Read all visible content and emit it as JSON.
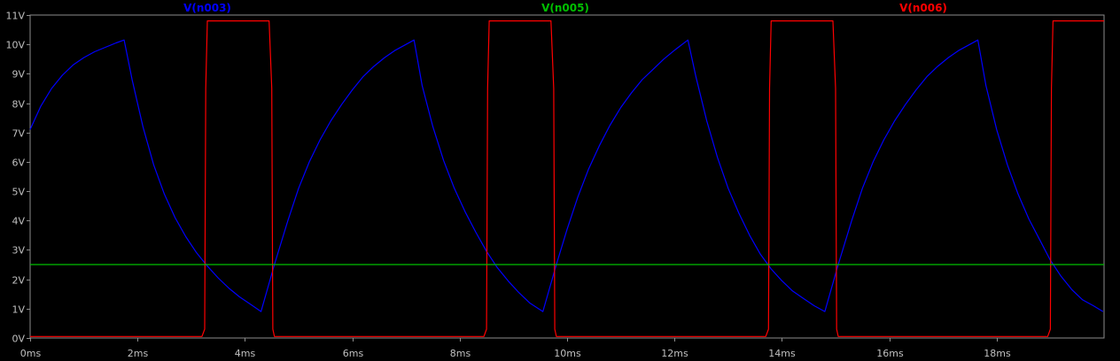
{
  "chart_data": {
    "type": "line",
    "title": "",
    "xlabel": "",
    "ylabel": "",
    "xlim": [
      0,
      20
    ],
    "ylim": [
      0,
      11
    ],
    "x_unit": "ms",
    "y_unit": "V",
    "grid": false,
    "legend_placement": "top",
    "x_ticks": [
      0,
      2,
      4,
      6,
      8,
      10,
      12,
      14,
      16,
      18
    ],
    "x_tick_labels": [
      "0ms",
      "2ms",
      "4ms",
      "6ms",
      "8ms",
      "10ms",
      "12ms",
      "14ms",
      "16ms",
      "18ms"
    ],
    "y_ticks": [
      0,
      1,
      2,
      3,
      4,
      5,
      6,
      7,
      8,
      9,
      10,
      11
    ],
    "y_tick_labels": [
      "0V",
      "1V",
      "2V",
      "3V",
      "4V",
      "5V",
      "6V",
      "7V",
      "8V",
      "9V",
      "10V",
      "11V"
    ],
    "series": [
      {
        "name": "V(n003)",
        "color": "#0000ff",
        "x": [
          0,
          0.2,
          0.4,
          0.6,
          0.8,
          1.0,
          1.2,
          1.4,
          1.6,
          1.75,
          1.9,
          2.1,
          2.3,
          2.5,
          2.7,
          2.9,
          3.1,
          3.3,
          3.5,
          3.7,
          3.9,
          4.1,
          4.3,
          4.55,
          4.8,
          5.0,
          5.2,
          5.4,
          5.6,
          5.8,
          6.0,
          6.2,
          6.4,
          6.6,
          6.8,
          7.0,
          7.15,
          7.3,
          7.5,
          7.7,
          7.9,
          8.1,
          8.3,
          8.5,
          8.7,
          8.9,
          9.1,
          9.3,
          9.55,
          9.8,
          10.0,
          10.2,
          10.4,
          10.6,
          10.8,
          11.0,
          11.2,
          11.4,
          11.6,
          11.8,
          12.0,
          12.25,
          12.4,
          12.6,
          12.8,
          13.0,
          13.2,
          13.4,
          13.6,
          13.8,
          14.0,
          14.2,
          14.4,
          14.6,
          14.8,
          15.05,
          15.3,
          15.5,
          15.7,
          15.9,
          16.1,
          16.3,
          16.5,
          16.7,
          16.9,
          17.1,
          17.3,
          17.5,
          17.65,
          17.8,
          18.0,
          18.2,
          18.4,
          18.6,
          18.8,
          19.0,
          19.2,
          19.4,
          19.6,
          19.8,
          19.98
        ],
        "y": [
          7.1,
          7.9,
          8.5,
          8.95,
          9.3,
          9.55,
          9.75,
          9.9,
          10.05,
          10.15,
          8.8,
          7.2,
          5.9,
          4.9,
          4.1,
          3.45,
          2.9,
          2.45,
          2.05,
          1.7,
          1.4,
          1.15,
          0.9,
          2.5,
          4.0,
          5.1,
          6.0,
          6.75,
          7.4,
          7.95,
          8.45,
          8.9,
          9.25,
          9.55,
          9.8,
          10.0,
          10.15,
          8.6,
          7.2,
          6.05,
          5.1,
          4.3,
          3.6,
          2.95,
          2.4,
          1.95,
          1.55,
          1.2,
          0.9,
          2.5,
          3.7,
          4.8,
          5.75,
          6.55,
          7.25,
          7.85,
          8.35,
          8.8,
          9.15,
          9.5,
          9.8,
          10.15,
          8.9,
          7.4,
          6.15,
          5.1,
          4.25,
          3.5,
          2.85,
          2.35,
          1.95,
          1.6,
          1.35,
          1.1,
          0.9,
          2.5,
          4.0,
          5.1,
          6.0,
          6.75,
          7.4,
          7.95,
          8.45,
          8.9,
          9.25,
          9.55,
          9.8,
          10.0,
          10.15,
          8.6,
          7.1,
          5.9,
          4.9,
          4.05,
          3.35,
          2.65,
          2.1,
          1.65,
          1.3,
          1.1,
          0.9
        ]
      },
      {
        "name": "V(n005)",
        "color": "#00c000",
        "x": [
          0,
          20
        ],
        "y": [
          2.5,
          2.5
        ]
      },
      {
        "name": "V(n006)",
        "color": "#ff0000",
        "x": [
          0,
          3.2,
          3.25,
          3.27,
          3.3,
          4.45,
          4.5,
          4.52,
          4.55,
          8.45,
          8.5,
          8.52,
          8.55,
          9.7,
          9.75,
          9.77,
          9.8,
          13.7,
          13.75,
          13.77,
          13.8,
          14.95,
          15.0,
          15.02,
          15.05,
          18.95,
          19.0,
          19.02,
          19.05,
          20
        ],
        "y": [
          0.05,
          0.05,
          0.3,
          8.5,
          10.8,
          10.8,
          8.5,
          0.3,
          0.05,
          0.05,
          0.3,
          8.5,
          10.8,
          10.8,
          8.5,
          0.3,
          0.05,
          0.05,
          0.3,
          8.5,
          10.8,
          10.8,
          8.5,
          0.3,
          0.05,
          0.05,
          0.3,
          8.5,
          10.8,
          10.8
        ]
      }
    ]
  }
}
